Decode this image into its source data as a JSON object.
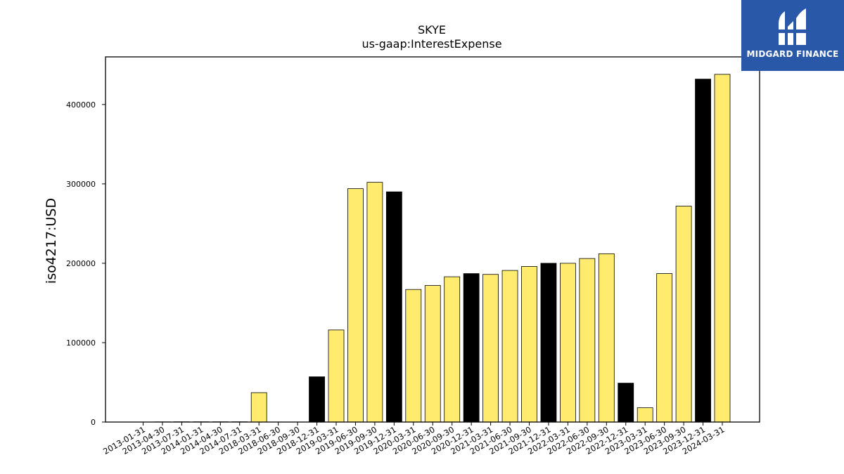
{
  "brand": {
    "name": "MIDGARD FINANCE",
    "color": "#2a58a8"
  },
  "chart_data": {
    "type": "bar",
    "title": "SKYE",
    "subtitle": "us-gaap:InterestExpense",
    "xlabel": "",
    "ylabel": "iso4217:USD",
    "ylim": [
      0,
      460000
    ],
    "yticks": [
      0,
      100000,
      200000,
      300000,
      400000
    ],
    "grid": false,
    "colors": {
      "default": "#ffec6e",
      "highlight": "#000000",
      "edge": "#000000"
    },
    "categories": [
      "2013-01-31",
      "2013-04-30",
      "2013-07-31",
      "2014-01-31",
      "2014-04-30",
      "2014-07-31",
      "2018-03-31",
      "2018-06-30",
      "2018-09-30",
      "2018-12-31",
      "2019-03-31",
      "2019-06-30",
      "2019-09-30",
      "2019-12-31",
      "2020-03-31",
      "2020-06-30",
      "2020-09-30",
      "2020-12-31",
      "2021-03-31",
      "2021-06-30",
      "2021-09-30",
      "2021-12-31",
      "2022-03-31",
      "2022-06-30",
      "2022-09-30",
      "2022-12-31",
      "2023-03-31",
      "2023-06-30",
      "2023-09-30",
      "2023-12-31",
      "2024-03-31"
    ],
    "values": [
      0,
      200,
      300,
      300,
      300,
      300,
      37000,
      0,
      0,
      57000,
      116000,
      294000,
      302000,
      290000,
      167000,
      172000,
      183000,
      187000,
      186000,
      191000,
      196000,
      200000,
      200000,
      206000,
      212000,
      49000,
      18000,
      187000,
      272000,
      432000,
      438000
    ],
    "highlight": [
      false,
      false,
      false,
      false,
      false,
      false,
      false,
      false,
      false,
      true,
      false,
      false,
      false,
      true,
      false,
      false,
      false,
      true,
      false,
      false,
      false,
      true,
      false,
      false,
      false,
      true,
      false,
      false,
      false,
      true,
      false
    ]
  }
}
